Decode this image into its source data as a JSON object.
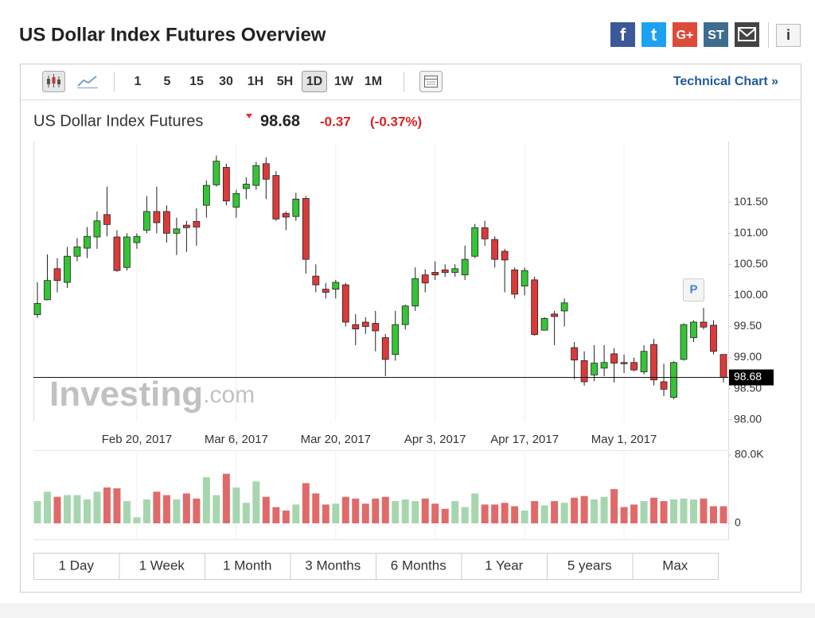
{
  "header": {
    "title": "US Dollar Index Futures Overview",
    "share": [
      "f",
      "t",
      "G+",
      "ST"
    ],
    "info": "i"
  },
  "toolbar": {
    "intervals": [
      "1",
      "5",
      "15",
      "30",
      "1H",
      "5H",
      "1D",
      "1W",
      "1M"
    ],
    "selected": "1D",
    "link": "Technical Chart »"
  },
  "quote": {
    "name": "US Dollar Index Futures",
    "price": 98.68,
    "change": -0.37,
    "change_pct": "(-0.37%)"
  },
  "chart_data": {
    "type": "candlestick",
    "x": [
      "2017-02-06",
      "2017-02-07",
      "2017-02-08",
      "2017-02-09",
      "2017-02-10",
      "2017-02-13",
      "2017-02-14",
      "2017-02-15",
      "2017-02-16",
      "2017-02-17",
      "2017-02-20",
      "2017-02-21",
      "2017-02-22",
      "2017-02-23",
      "2017-02-24",
      "2017-02-27",
      "2017-02-28",
      "2017-03-01",
      "2017-03-02",
      "2017-03-03",
      "2017-03-06",
      "2017-03-07",
      "2017-03-08",
      "2017-03-09",
      "2017-03-10",
      "2017-03-13",
      "2017-03-14",
      "2017-03-15",
      "2017-03-16",
      "2017-03-17",
      "2017-03-20",
      "2017-03-21",
      "2017-03-22",
      "2017-03-23",
      "2017-03-24",
      "2017-03-27",
      "2017-03-28",
      "2017-03-29",
      "2017-03-30",
      "2017-03-31",
      "2017-04-03",
      "2017-04-04",
      "2017-04-05",
      "2017-04-06",
      "2017-04-07",
      "2017-04-10",
      "2017-04-11",
      "2017-04-12",
      "2017-04-13",
      "2017-04-17",
      "2017-04-18",
      "2017-04-19",
      "2017-04-20",
      "2017-04-21",
      "2017-04-24",
      "2017-04-25",
      "2017-04-26",
      "2017-04-27",
      "2017-04-28",
      "2017-05-01",
      "2017-05-02",
      "2017-05-03",
      "2017-05-04",
      "2017-05-05",
      "2017-05-08",
      "2017-05-09",
      "2017-05-10",
      "2017-05-11",
      "2017-05-12",
      "2017-05-15"
    ],
    "open": [
      99.69,
      99.93,
      100.43,
      100.21,
      100.63,
      100.76,
      100.94,
      101.3,
      100.94,
      100.45,
      100.85,
      101.05,
      101.35,
      101.35,
      101.0,
      101.13,
      101.19,
      101.45,
      101.78,
      102.06,
      101.42,
      101.72,
      101.77,
      102.12,
      101.93,
      101.32,
      101.27,
      101.56,
      100.31,
      100.1,
      100.1,
      100.17,
      99.53,
      99.57,
      99.55,
      99.32,
      99.05,
      99.53,
      99.83,
      100.33,
      100.37,
      100.41,
      100.37,
      100.33,
      100.63,
      101.09,
      100.9,
      100.71,
      100.41,
      100.15,
      100.25,
      99.44,
      99.7,
      99.75,
      99.16,
      98.95,
      98.72,
      98.83,
      99.06,
      98.92,
      98.92,
      98.77,
      99.21,
      98.61,
      98.36,
      98.97,
      99.32,
      99.57,
      99.52,
      99.05
    ],
    "high": [
      100.21,
      100.66,
      100.6,
      100.78,
      100.92,
      101.1,
      101.35,
      101.75,
      101.05,
      101.0,
      101.0,
      101.6,
      101.75,
      101.45,
      101.25,
      101.2,
      101.4,
      101.85,
      102.25,
      102.12,
      101.7,
      101.9,
      102.15,
      102.22,
      102.0,
      101.35,
      101.65,
      101.6,
      100.5,
      100.2,
      100.25,
      100.2,
      99.7,
      99.65,
      99.75,
      99.38,
      99.75,
      99.85,
      100.45,
      100.42,
      100.55,
      100.5,
      100.5,
      100.8,
      101.15,
      101.2,
      100.95,
      100.75,
      100.45,
      100.45,
      100.3,
      99.65,
      99.75,
      99.95,
      99.25,
      99.1,
      99.2,
      99.2,
      99.15,
      99.05,
      99.0,
      99.2,
      99.3,
      98.9,
      98.94,
      99.55,
      99.6,
      99.8,
      99.6,
      99.05
    ],
    "low": [
      99.64,
      99.92,
      100.05,
      100.12,
      100.55,
      100.6,
      100.75,
      100.95,
      100.38,
      100.4,
      100.75,
      101.0,
      101.0,
      100.85,
      100.65,
      100.7,
      100.8,
      101.25,
      101.75,
      101.45,
      101.25,
      101.55,
      101.7,
      101.55,
      101.2,
      101.05,
      101.2,
      100.35,
      100.05,
      99.95,
      99.95,
      99.5,
      99.2,
      99.38,
      99.1,
      98.7,
      98.95,
      99.45,
      99.75,
      100.05,
      100.25,
      100.3,
      100.3,
      100.25,
      100.6,
      100.8,
      100.45,
      100.05,
      99.95,
      100.0,
      99.35,
      99.45,
      99.2,
      99.5,
      98.65,
      98.55,
      98.62,
      98.7,
      98.6,
      98.75,
      98.78,
      98.73,
      98.55,
      98.38,
      98.33,
      98.95,
      99.25,
      99.45,
      99.05,
      98.6
    ],
    "close": [
      99.87,
      100.24,
      100.24,
      100.63,
      100.78,
      100.95,
      101.2,
      101.14,
      100.4,
      100.94,
      100.95,
      101.35,
      101.17,
      101.0,
      101.07,
      101.09,
      101.1,
      101.77,
      102.16,
      101.52,
      101.64,
      101.79,
      102.09,
      101.87,
      101.23,
      101.26,
      101.55,
      100.58,
      100.17,
      100.05,
      100.21,
      99.57,
      99.46,
      99.5,
      99.43,
      98.97,
      99.53,
      99.83,
      100.27,
      100.2,
      100.33,
      100.37,
      100.43,
      100.58,
      101.09,
      100.91,
      100.58,
      100.57,
      100.02,
      100.4,
      99.37,
      99.63,
      99.66,
      99.88,
      98.96,
      98.61,
      98.91,
      98.92,
      98.91,
      98.9,
      98.8,
      99.1,
      98.64,
      98.49,
      98.92,
      99.53,
      99.57,
      99.49,
      99.1,
      98.68
    ],
    "volume": [
      26000,
      37000,
      31000,
      33000,
      33000,
      28000,
      37000,
      42000,
      41000,
      26000,
      7000,
      28000,
      37000,
      33000,
      28000,
      35000,
      29000,
      54000,
      33000,
      58000,
      42000,
      24000,
      49000,
      31000,
      19000,
      15000,
      22000,
      47000,
      35000,
      22000,
      23000,
      31000,
      29000,
      23000,
      29000,
      31000,
      26000,
      28000,
      26000,
      29000,
      23000,
      17000,
      26000,
      19000,
      35000,
      22000,
      22000,
      24000,
      20000,
      15000,
      26000,
      21000,
      26000,
      24000,
      30000,
      32000,
      28000,
      31000,
      40000,
      19000,
      22000,
      26000,
      30000,
      26000,
      28000,
      29000,
      28000,
      29000,
      20000,
      20000
    ],
    "ylim": [
      97.97,
      102.45
    ],
    "yticks": [
      {
        "value": 98,
        "label": "98.00"
      },
      {
        "value": 98.5,
        "label": "98.50"
      },
      {
        "value": 99,
        "label": "99.00"
      },
      {
        "value": 99.5,
        "label": "99.50"
      },
      {
        "value": 100,
        "label": "100.00"
      },
      {
        "value": 100.5,
        "label": "100.50"
      },
      {
        "value": 101,
        "label": "101.00"
      },
      {
        "value": 101.5,
        "label": "101.50"
      }
    ],
    "xticks": [
      {
        "value": "2017-02-20",
        "label": "Feb 20, 2017"
      },
      {
        "value": "2017-03-06",
        "label": "Mar 6, 2017"
      },
      {
        "value": "2017-03-20",
        "label": "Mar 20, 2017"
      },
      {
        "value": "2017-04-03",
        "label": "Apr 3, 2017"
      },
      {
        "value": "2017-04-17",
        "label": "Apr 17, 2017"
      },
      {
        "value": "2017-05-01",
        "label": "May 1, 2017"
      }
    ],
    "volume_ylim": [
      0,
      80000
    ],
    "volume_yticks": [
      0,
      {
        "value": 80000,
        "label": "80.0K"
      }
    ],
    "up_color": "#35c435",
    "down_color": "#dc3a3a",
    "volume_up_color": "#a6d6ae",
    "volume_down_color": "#e06a6a",
    "annotations": [
      {
        "x": "2017-05-10",
        "label": "P"
      }
    ],
    "watermark": {
      "name": "Investing",
      "suffix": ".com"
    }
  },
  "periods": [
    "1 Day",
    "1 Week",
    "1 Month",
    "3 Months",
    "6 Months",
    "1 Year",
    "5 years",
    "Max"
  ]
}
